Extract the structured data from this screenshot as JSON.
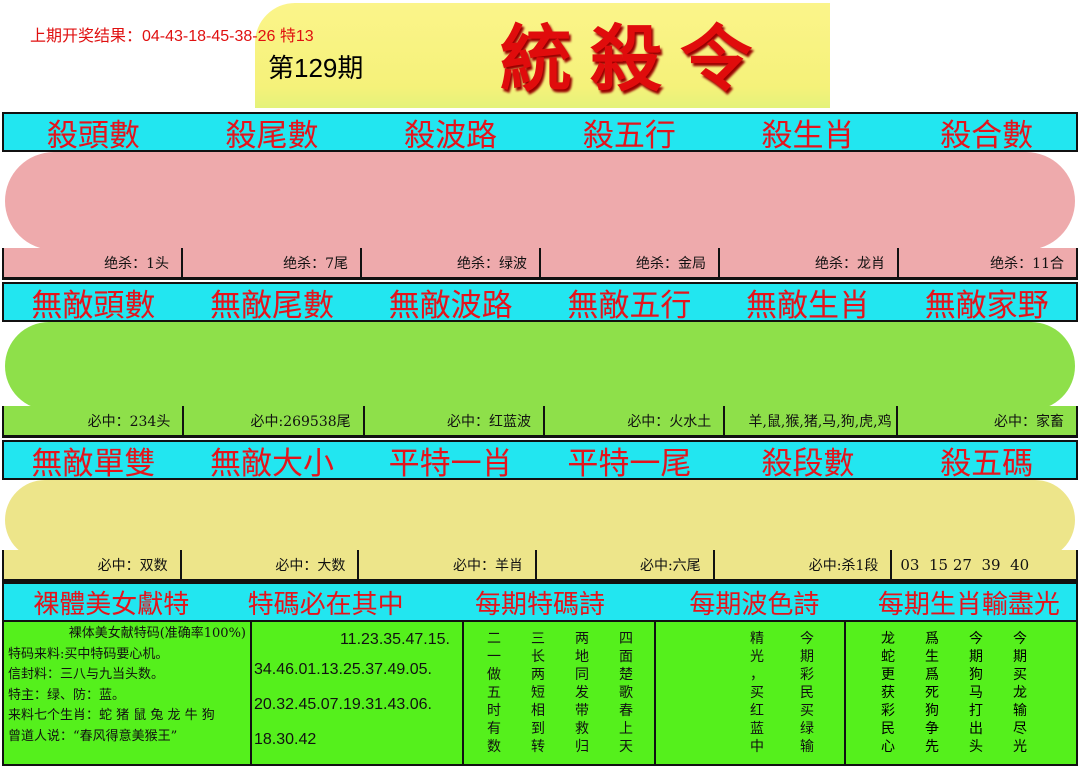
{
  "header": {
    "last_result": "上期开奖结果：04-43-18-45-38-26 特13",
    "issue": "第129期",
    "title": "統殺令"
  },
  "section1": {
    "headers": [
      "殺頭數",
      "殺尾數",
      "殺波路",
      "殺五行",
      "殺生肖",
      "殺合數"
    ],
    "values": [
      "绝杀：1头",
      "绝杀：7尾",
      "绝杀：绿波",
      "绝杀：金局",
      "绝杀：龙肖",
      "绝杀：11合"
    ]
  },
  "section2": {
    "headers": [
      "無敵頭數",
      "無敵尾數",
      "無敵波路",
      "無敵五行",
      "無敵生肖",
      "無敵家野"
    ],
    "values": [
      "必中：234头",
      "必中:269538尾",
      "必中：红蓝波",
      "必中：火水土",
      "羊,鼠,猴,猪,马,狗,虎,鸡",
      "必中：家畜"
    ]
  },
  "section3": {
    "headers": [
      "無敵單雙",
      "無敵大小",
      "平特一肖",
      "平特一尾",
      "殺段數",
      "殺五碼"
    ],
    "values": [
      "必中：双数",
      "必中：大数",
      "必中：羊肖",
      "必中:六尾",
      "必中:杀1段",
      "03  15 27  39  40"
    ]
  },
  "section4": {
    "headers": [
      "裸體美女獻特",
      "特碼必在其中",
      "每期特碼詩",
      "每期波色詩",
      "每期生肖輸盡光"
    ]
  },
  "bottom": {
    "info": [
      "裸体美女献特码(准确率100%)",
      "特码来料:买中特码要心机。",
      "信封料：三八与九当头数。",
      "特主：绿、防：蓝。",
      "来料七个生肖：蛇 猪 鼠 兔 龙 牛 狗",
      "曾道人说：“春风得意美猴王”"
    ],
    "numbers": [
      "11.23.35.47.15.",
      "34.46.01.13.25.37.49.05.",
      "20.32.45.07.19.31.43.06.",
      "18.30.42"
    ],
    "poem1": [
      "二",
      "一",
      "做",
      "五",
      "时",
      "有",
      "数",
      "三",
      "长",
      "两",
      "短",
      "相",
      "到",
      "转",
      "两",
      "地",
      "同",
      "发",
      "带",
      "救",
      "归",
      "四",
      "面",
      "楚",
      "歌",
      "春",
      "上",
      "天"
    ],
    "poem2": [
      "精",
      "光",
      "，",
      "买",
      "红",
      "蓝",
      "中",
      "今",
      "期",
      "彩",
      "民",
      "买",
      "绿",
      "输"
    ],
    "poem3": [
      "龙",
      "蛇",
      "更",
      "获",
      "彩",
      "民",
      "心",
      "爲",
      "生",
      "爲",
      "死",
      "狗",
      "争",
      "先",
      "今",
      "期",
      "狗",
      "马",
      "打",
      "出",
      "头",
      "今",
      "期",
      "买",
      "龙",
      "输",
      "尽",
      "光"
    ]
  }
}
